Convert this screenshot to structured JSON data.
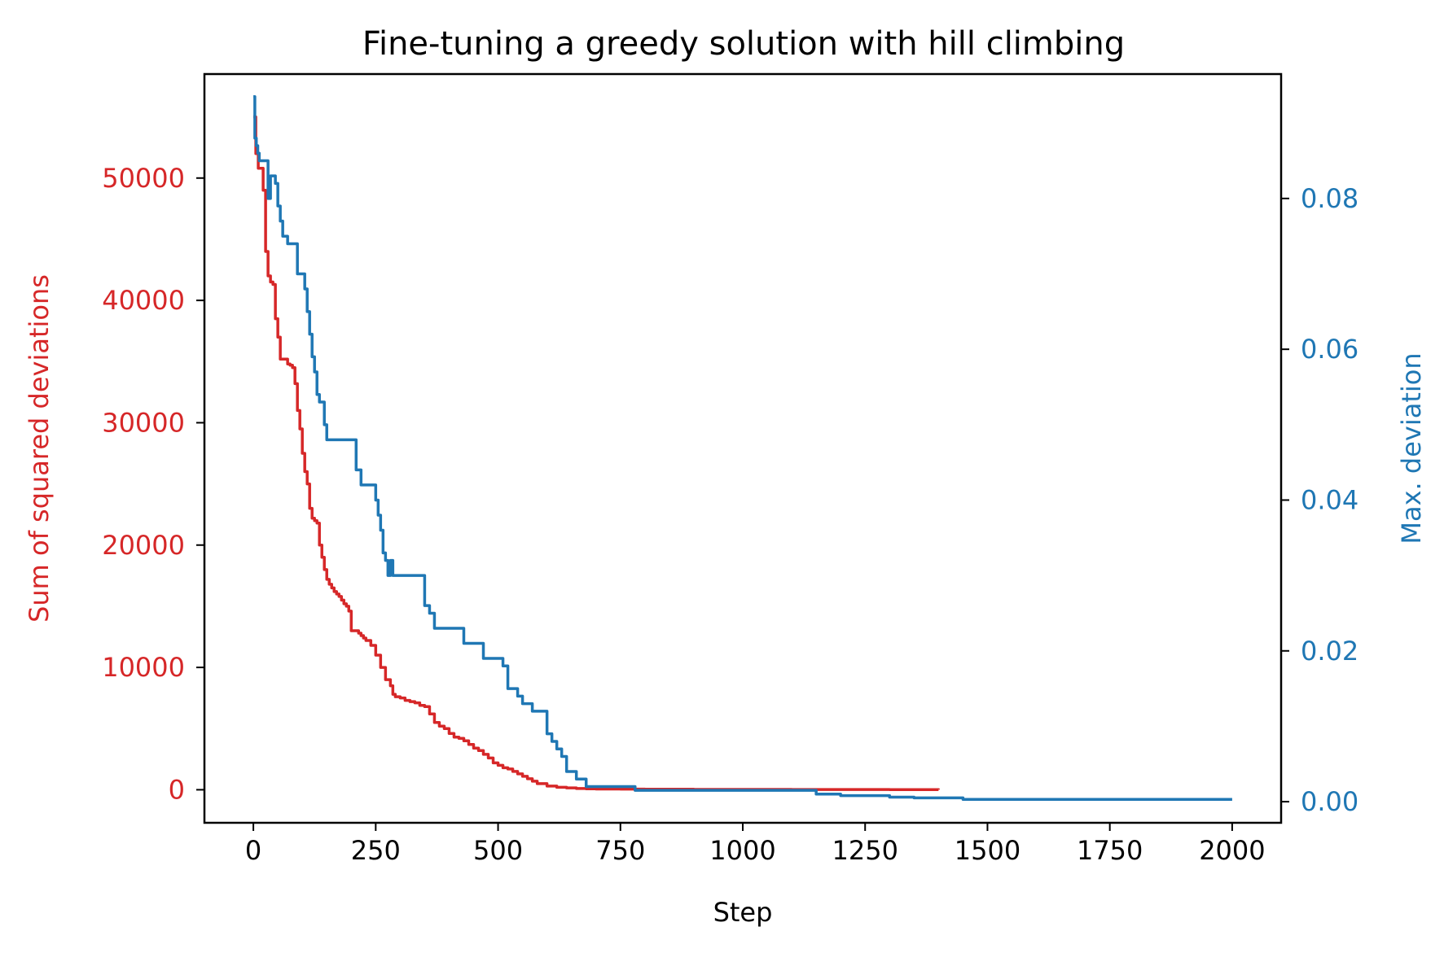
{
  "chart_data": {
    "type": "line",
    "title": "Fine-tuning a greedy solution with hill climbing",
    "xlabel": "Step",
    "ylabel_left": "Sum of squared deviations",
    "ylabel_right": "Max. deviation",
    "xlim": [
      -100,
      2100
    ],
    "xticks": [
      0,
      250,
      500,
      750,
      1000,
      1250,
      1500,
      1750,
      2000
    ],
    "xtick_labels": [
      "0",
      "250",
      "500",
      "750",
      "1000",
      "1250",
      "1500",
      "1750",
      "2000"
    ],
    "ylim_left": [
      -2700,
      58500
    ],
    "yticks_left": [
      0,
      10000,
      20000,
      30000,
      40000,
      50000
    ],
    "ytick_labels_left": [
      "0",
      "10000",
      "20000",
      "30000",
      "40000",
      "50000"
    ],
    "ylim_right": [
      -0.0028,
      0.0965
    ],
    "yticks_right": [
      0.0,
      0.02,
      0.04,
      0.06,
      0.08
    ],
    "ytick_labels_right": [
      "0.00",
      "0.02",
      "0.04",
      "0.06",
      "0.08"
    ],
    "grid": false,
    "colors": {
      "left": "#d62728",
      "right": "#1f77b4"
    },
    "series": [
      {
        "name": "Sum of squared deviations",
        "axis": "left",
        "color": "#d62728",
        "x": [
          0,
          5,
          10,
          15,
          20,
          25,
          30,
          35,
          40,
          45,
          50,
          55,
          60,
          65,
          70,
          75,
          80,
          85,
          90,
          95,
          100,
          105,
          110,
          115,
          120,
          125,
          130,
          135,
          140,
          145,
          150,
          155,
          160,
          165,
          170,
          175,
          180,
          185,
          190,
          195,
          200,
          205,
          210,
          215,
          220,
          225,
          230,
          240,
          250,
          260,
          270,
          280,
          285,
          290,
          300,
          310,
          320,
          330,
          340,
          350,
          360,
          370,
          380,
          390,
          400,
          410,
          420,
          430,
          440,
          450,
          460,
          470,
          480,
          490,
          500,
          510,
          520,
          530,
          540,
          550,
          560,
          570,
          580,
          600,
          620,
          640,
          660,
          680,
          700,
          750,
          800,
          900,
          1000,
          1100,
          1200,
          1300,
          1400
        ],
        "y": [
          55000,
          52000,
          50800,
          50800,
          49000,
          44000,
          42000,
          41500,
          41300,
          38500,
          37000,
          35200,
          35200,
          35200,
          34800,
          34700,
          34500,
          33200,
          31000,
          29500,
          27500,
          26000,
          25000,
          23000,
          22200,
          22000,
          21800,
          20000,
          19000,
          18000,
          17200,
          16800,
          16500,
          16200,
          16000,
          15800,
          15500,
          15200,
          15000,
          14600,
          13000,
          13000,
          13000,
          12800,
          12600,
          12400,
          12200,
          11800,
          11000,
          10000,
          9000,
          8500,
          7800,
          7600,
          7500,
          7300,
          7200,
          7100,
          6900,
          6800,
          6200,
          5500,
          5200,
          5000,
          4600,
          4300,
          4200,
          4000,
          3700,
          3400,
          3200,
          2900,
          2600,
          2200,
          2000,
          1800,
          1700,
          1500,
          1300,
          1100,
          900,
          700,
          500,
          300,
          200,
          150,
          100,
          80,
          60,
          50,
          40,
          30,
          30,
          20,
          20,
          15,
          10
        ]
      },
      {
        "name": "Max. deviation",
        "axis": "right",
        "color": "#1f77b4",
        "x": [
          0,
          3,
          6,
          9,
          12,
          15,
          20,
          30,
          35,
          40,
          45,
          50,
          55,
          60,
          65,
          70,
          80,
          90,
          100,
          105,
          110,
          115,
          120,
          125,
          130,
          135,
          140,
          145,
          150,
          155,
          160,
          170,
          180,
          190,
          200,
          210,
          220,
          230,
          240,
          250,
          255,
          260,
          265,
          270,
          275,
          280,
          285,
          290,
          300,
          310,
          320,
          330,
          340,
          350,
          360,
          370,
          380,
          390,
          400,
          410,
          420,
          430,
          440,
          450,
          460,
          470,
          480,
          490,
          500,
          510,
          520,
          530,
          540,
          550,
          560,
          570,
          580,
          590,
          600,
          610,
          620,
          630,
          640,
          650,
          660,
          670,
          680,
          700,
          720,
          740,
          760,
          780,
          800,
          900,
          1000,
          1100,
          1150,
          1200,
          1250,
          1300,
          1350,
          1400,
          1450,
          1500,
          1600,
          1700,
          1800,
          1900,
          2000
        ],
        "y": [
          0.0935,
          0.088,
          0.087,
          0.086,
          0.085,
          0.085,
          0.085,
          0.08,
          0.083,
          0.083,
          0.082,
          0.079,
          0.077,
          0.075,
          0.075,
          0.074,
          0.074,
          0.07,
          0.07,
          0.068,
          0.065,
          0.062,
          0.059,
          0.057,
          0.054,
          0.053,
          0.053,
          0.05,
          0.048,
          0.048,
          0.048,
          0.048,
          0.048,
          0.048,
          0.048,
          0.044,
          0.042,
          0.042,
          0.042,
          0.04,
          0.038,
          0.036,
          0.033,
          0.032,
          0.03,
          0.032,
          0.03,
          0.03,
          0.03,
          0.03,
          0.03,
          0.03,
          0.03,
          0.026,
          0.025,
          0.023,
          0.023,
          0.023,
          0.023,
          0.023,
          0.023,
          0.021,
          0.021,
          0.021,
          0.021,
          0.019,
          0.019,
          0.019,
          0.019,
          0.018,
          0.015,
          0.015,
          0.014,
          0.013,
          0.013,
          0.012,
          0.012,
          0.012,
          0.009,
          0.008,
          0.007,
          0.006,
          0.004,
          0.004,
          0.003,
          0.003,
          0.002,
          0.002,
          0.002,
          0.002,
          0.002,
          0.0015,
          0.0015,
          0.0015,
          0.0015,
          0.0015,
          0.001,
          0.0008,
          0.0008,
          0.0006,
          0.0005,
          0.0005,
          0.0003,
          0.0003,
          0.0003,
          0.0003,
          0.0003,
          0.0003,
          0.0003
        ]
      }
    ]
  }
}
